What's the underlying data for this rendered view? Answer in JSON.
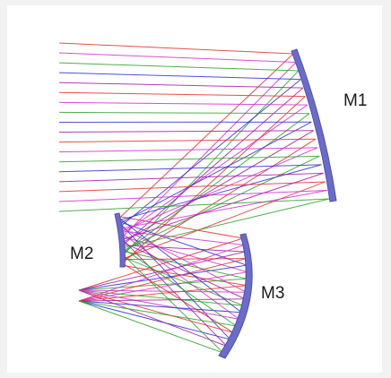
{
  "diagram": {
    "labels": {
      "m1": "M1",
      "m2": "M2",
      "m3": "M3"
    },
    "colors": {
      "mirror": "#6b6bc8",
      "mirror_edge": "#5050b0",
      "rays": [
        "#e03030",
        "#d030d0",
        "#30a030",
        "#3030d0",
        "#a020a0"
      ]
    }
  }
}
